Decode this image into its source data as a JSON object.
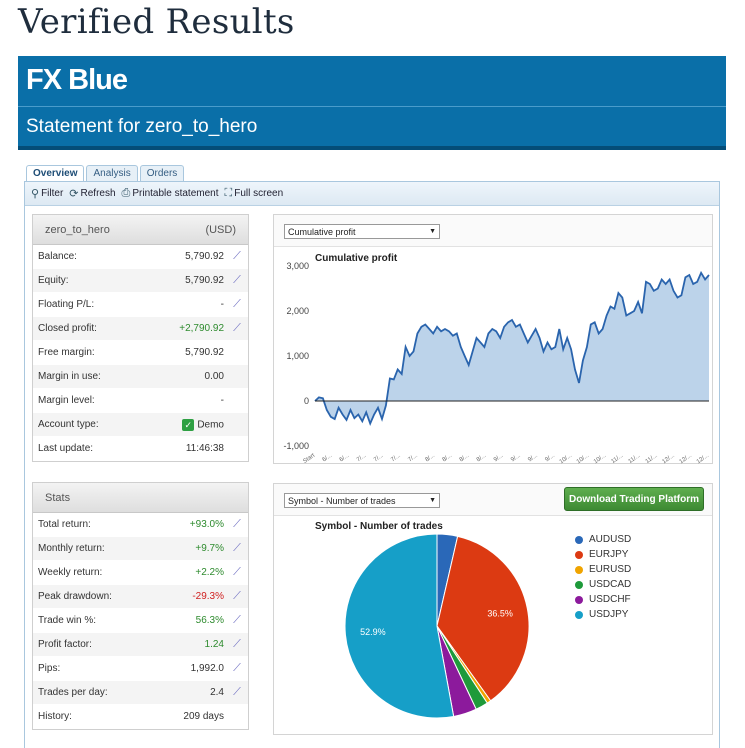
{
  "page": {
    "title": "Verified Results"
  },
  "banner": {
    "logo_fx": "FX",
    "logo_blue": "Blue",
    "statement": "Statement for zero_to_hero"
  },
  "tabs": [
    {
      "label": "Overview",
      "active": true
    },
    {
      "label": "Analysis",
      "active": false
    },
    {
      "label": "Orders",
      "active": false
    }
  ],
  "toolbar": {
    "filter": "Filter",
    "refresh": "Refresh",
    "printable": "Printable statement",
    "fullscreen": "Full screen"
  },
  "account": {
    "name": "zero_to_hero",
    "currency": "(USD)",
    "rows": [
      {
        "label": "Balance:",
        "value": "5,790.92",
        "chart": true,
        "tone": ""
      },
      {
        "label": "Equity:",
        "value": "5,790.92",
        "chart": true,
        "tone": ""
      },
      {
        "label": "Floating P/L:",
        "value": "-",
        "chart": true,
        "tone": ""
      },
      {
        "label": "Closed profit:",
        "value": "+2,790.92",
        "chart": true,
        "tone": "pos"
      },
      {
        "label": "Free margin:",
        "value": "5,790.92",
        "chart": false,
        "tone": ""
      },
      {
        "label": "Margin in use:",
        "value": "0.00",
        "chart": false,
        "tone": ""
      },
      {
        "label": "Margin level:",
        "value": "-",
        "chart": false,
        "tone": ""
      },
      {
        "label": "Account type:",
        "value": "Demo",
        "chart": false,
        "tone": "",
        "check": true
      },
      {
        "label": "Last update:",
        "value": "11:46:38",
        "chart": false,
        "tone": ""
      }
    ]
  },
  "stats": {
    "title": "Stats",
    "rows": [
      {
        "label": "Total return:",
        "value": "+93.0%",
        "chart": true,
        "tone": "pos"
      },
      {
        "label": "Monthly return:",
        "value": "+9.7%",
        "chart": true,
        "tone": "pos"
      },
      {
        "label": "Weekly return:",
        "value": "+2.2%",
        "chart": true,
        "tone": "pos"
      },
      {
        "label": "Peak drawdown:",
        "value": "-29.3%",
        "chart": true,
        "tone": "neg"
      },
      {
        "label": "Trade win %:",
        "value": "56.3%",
        "chart": true,
        "tone": "pos"
      },
      {
        "label": "Profit factor:",
        "value": "1.24",
        "chart": true,
        "tone": "pos"
      },
      {
        "label": "Pips:",
        "value": "1,992.0",
        "chart": true,
        "tone": ""
      },
      {
        "label": "Trades per day:",
        "value": "2.4",
        "chart": true,
        "tone": ""
      },
      {
        "label": "History:",
        "value": "209 days",
        "chart": false,
        "tone": ""
      }
    ]
  },
  "profit_panel": {
    "select": "Cumulative profit"
  },
  "symbol_panel": {
    "select": "Symbol - Number of trades",
    "download": "Download Trading Platform"
  },
  "colors": {
    "accent": "#0a6fa8",
    "area_fill": "#bcd3ea",
    "area_line": "#2a64ad"
  },
  "chart_data": [
    {
      "type": "area",
      "title": "Cumulative profit",
      "ylim": [
        -1000,
        3000
      ],
      "yticks": [
        "3,000",
        "2,000",
        "1,000",
        "0",
        "-1,000"
      ],
      "ytick_values": [
        3000,
        2000,
        1000,
        0,
        -1000
      ],
      "xticks": [
        "Start",
        "6/...",
        "6/...",
        "7/...",
        "7/...",
        "7/...",
        "7/...",
        "8/...",
        "8/...",
        "8/...",
        "8/...",
        "9/...",
        "9/...",
        "9/...",
        "9/...",
        "10/...",
        "10/...",
        "10/...",
        "11/...",
        "11/...",
        "11/...",
        "12/...",
        "12/...",
        "12/..."
      ],
      "grid": false,
      "values": [
        0,
        80,
        60,
        -200,
        -350,
        -400,
        -150,
        -300,
        -420,
        -200,
        -380,
        -300,
        -450,
        -250,
        -500,
        -300,
        -150,
        -400,
        -100,
        500,
        480,
        700,
        600,
        1200,
        1000,
        1100,
        1500,
        1650,
        1700,
        1600,
        1500,
        1650,
        1550,
        1600,
        1550,
        1450,
        1500,
        1200,
        1000,
        800,
        1100,
        1400,
        1300,
        1200,
        1500,
        1600,
        1550,
        1400,
        1650,
        1750,
        1800,
        1650,
        1700,
        1500,
        1300,
        1450,
        1600,
        1400,
        1100,
        1300,
        1150,
        1200,
        1600,
        1150,
        1400,
        1150,
        700,
        400,
        900,
        1200,
        1700,
        1750,
        1500,
        1600,
        1900,
        2100,
        2050,
        2400,
        2300,
        1900,
        1950,
        2000,
        2200,
        1950,
        2650,
        2600,
        2450,
        2500,
        2700,
        2600,
        2700,
        2450,
        2300,
        2350,
        2750,
        2800,
        2600,
        2650,
        2850,
        2700,
        2800
      ]
    },
    {
      "type": "pie",
      "title": "Symbol - Number of trades",
      "legend_position": "right",
      "labels": [
        "AUDUSD",
        "EURJPY",
        "EURUSD",
        "USDCAD",
        "USDCHF",
        "USDJPY"
      ],
      "values": [
        3.6,
        36.5,
        0.7,
        2.2,
        4.1,
        52.9
      ],
      "colors": [
        "#2a68b8",
        "#dc3a12",
        "#f0a400",
        "#1e9a3a",
        "#8c1a9c",
        "#169fc8"
      ],
      "shown_labels": [
        "",
        "36.5%",
        "",
        "",
        "",
        "52.9%"
      ]
    }
  ]
}
